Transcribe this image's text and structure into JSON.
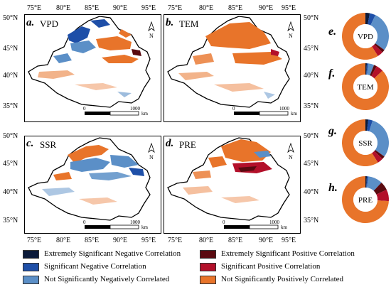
{
  "top_lon_ticks": [
    "75°E",
    "80°E",
    "85°E",
    "90°E",
    "95°E"
  ],
  "bottom_lon_ticks": [
    "75°E",
    "80°E",
    "85°E",
    "90°E",
    "95°E"
  ],
  "top_lat_ticks": [
    "50°N",
    "45°N",
    "40°N",
    "35°N"
  ],
  "bottom_lat_ticks": [
    "50°N",
    "45°N",
    "40°N",
    "35°N"
  ],
  "panels": [
    {
      "letter": "a.",
      "variable": "VPD"
    },
    {
      "letter": "b.",
      "variable": "TEM"
    },
    {
      "letter": "c.",
      "variable": "SSR"
    },
    {
      "letter": "d.",
      "variable": "PRE"
    }
  ],
  "north_label": "N",
  "scalebar": {
    "zero": "0",
    "max": "1000",
    "unit": "km"
  },
  "donuts": [
    {
      "letter": "e.",
      "variable": "VPD",
      "shares": [
        0.03,
        0.04,
        0.28,
        0.02,
        0.04,
        0.59
      ]
    },
    {
      "letter": "f.",
      "variable": "TEM",
      "shares": [
        0.01,
        0.01,
        0.04,
        0.02,
        0.05,
        0.87
      ]
    },
    {
      "letter": "g.",
      "variable": "SSR",
      "shares": [
        0.02,
        0.03,
        0.3,
        0.02,
        0.04,
        0.59
      ]
    },
    {
      "letter": "h.",
      "variable": "PRE",
      "shares": [
        0.01,
        0.01,
        0.1,
        0.06,
        0.08,
        0.74
      ]
    }
  ],
  "legend": [
    {
      "label": "Extremely Significant Negative Correlation",
      "color": "#0b1a3a"
    },
    {
      "label": "Extremely Significant Positive Correlation",
      "color": "#5a0a10"
    },
    {
      "label": "Significant Negative Correlation",
      "color": "#1e4fa8"
    },
    {
      "label": "Significant Positive Correlation",
      "color": "#b3102a"
    },
    {
      "label": "Not Significantly Negatively Correlated",
      "color": "#5b8fc7"
    },
    {
      "label": "Not Significantly Positively Correlated",
      "color": "#e8742a"
    }
  ]
}
